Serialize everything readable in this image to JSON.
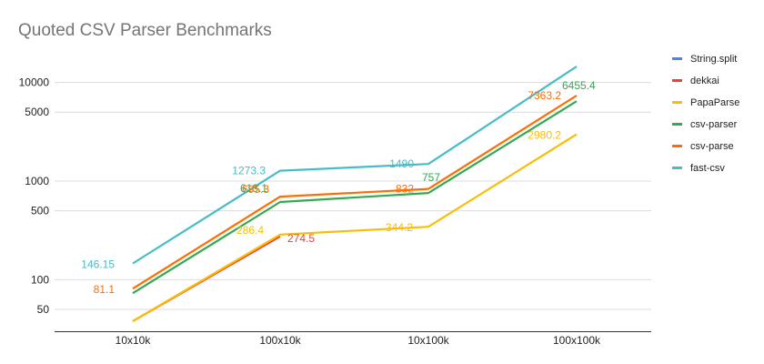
{
  "chart_data": {
    "type": "line",
    "title": "Quoted CSV Parser Benchmarks",
    "xlabel": "",
    "ylabel": "",
    "y_scale": "log",
    "ylim": [
      30,
      20000
    ],
    "y_ticks": [
      50,
      100,
      500,
      1000,
      5000,
      10000
    ],
    "y_tick_labels": [
      "50",
      "100",
      "500",
      "1000",
      "5000",
      "10000"
    ],
    "categories": [
      "10x10k",
      "100x10k",
      "10x100k",
      "100x100k"
    ],
    "grid": true,
    "legend_position": "right",
    "series": [
      {
        "name": "String.split",
        "color": "#4285f4",
        "values": [
          null,
          null,
          null,
          null
        ],
        "labels": [
          null,
          null,
          null,
          null
        ]
      },
      {
        "name": "dekkai",
        "color": "#ea4335",
        "values": [
          38,
          274.5,
          null,
          null
        ],
        "labels": [
          null,
          "274.5",
          null,
          null
        ]
      },
      {
        "name": "PapaParse",
        "color": "#fbbc04",
        "values": [
          38,
          286.4,
          344.2,
          2980.2
        ],
        "labels": [
          null,
          "286.4",
          "344.2",
          "2980.2"
        ]
      },
      {
        "name": "csv-parser",
        "color": "#34a853",
        "values": [
          73,
          613.1,
          757,
          6455.4
        ],
        "labels": [
          null,
          "613.1",
          "757",
          "6455.4"
        ]
      },
      {
        "name": "csv-parse",
        "color": "#ff6d01",
        "values": [
          81.1,
          695.3,
          832,
          7363.2
        ],
        "labels": [
          "81.1",
          "695.3",
          "832",
          "7363.2"
        ]
      },
      {
        "name": "fast-csv",
        "color": "#46bdc6",
        "values": [
          146.15,
          1273.3,
          1490,
          14500
        ],
        "labels": [
          "146.15",
          "1273.3",
          "1490",
          null
        ]
      }
    ]
  }
}
